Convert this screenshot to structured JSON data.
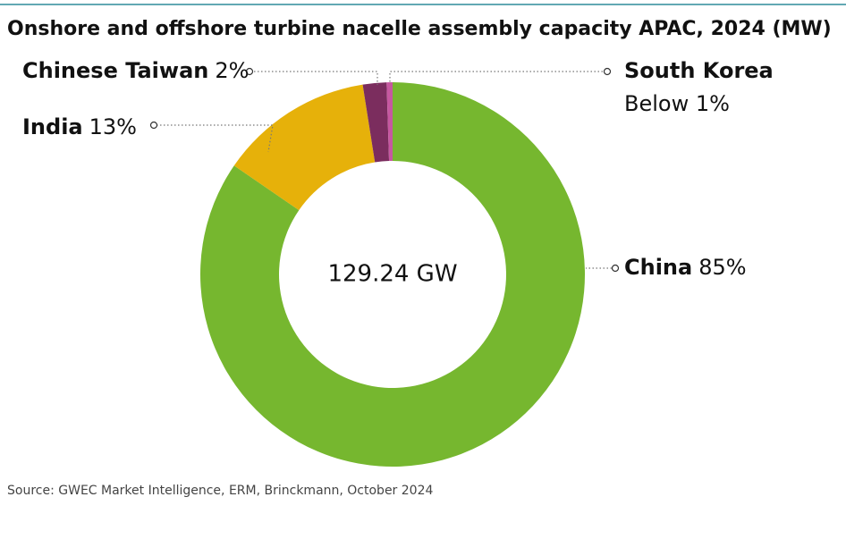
{
  "chart_data": {
    "type": "donut",
    "title": "Onshore and offshore turbine nacelle assembly capacity APAC, 2024 (MW)",
    "center_label": "129.24 GW",
    "categories": [
      "China",
      "India",
      "Chinese Taiwan",
      "South Korea"
    ],
    "values": [
      85,
      13,
      2,
      0.5
    ],
    "value_labels": [
      "85%",
      "13%",
      "2%",
      "Below 1%"
    ],
    "colors": [
      "#76b72f",
      "#e6b10a",
      "#7b2d5e",
      "#c658a0"
    ],
    "source": "Source: GWEC Market Intelligence, ERM, Brinckmann, October 2024"
  }
}
